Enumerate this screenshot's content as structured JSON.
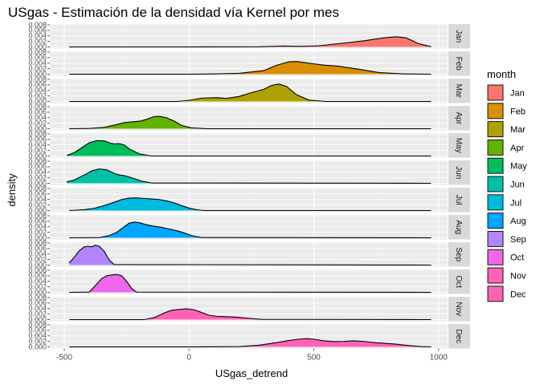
{
  "chart_data": {
    "type": "area",
    "title": "USgas - Estimación de la densidad vía Kernel por mes",
    "xlabel": "USgas_detrend",
    "ylabel": "density",
    "xlim": [
      -520,
      1000
    ],
    "ylim": [
      0,
      0.008
    ],
    "x_ticks": [
      -500,
      0,
      500,
      1000
    ],
    "x_tick_labels": [
      "-500",
      "0",
      "500",
      "1000"
    ],
    "y_ticks": [
      0,
      0.002,
      0.004,
      0.006,
      0.008
    ],
    "y_tick_labels": [
      "0.000",
      "0.002",
      "0.004",
      "0.006",
      "0.008"
    ],
    "legend_title": "month",
    "legend_position": "right",
    "grid": true,
    "panel_background": "#ebebeb",
    "strip_background": "#d9d9d9",
    "series": [
      {
        "name": "Jan",
        "color": "#F8766D",
        "x": [
          -480,
          0,
          280,
          380,
          450,
          520,
          600,
          700,
          780,
          830,
          870,
          920,
          970
        ],
        "y": [
          0,
          0,
          5e-05,
          0.0003,
          0.0002,
          0.0004,
          0.0012,
          0.0022,
          0.0033,
          0.0037,
          0.0033,
          0.0012,
          0.0001
        ]
      },
      {
        "name": "Feb",
        "color": "#DB8E00",
        "x": [
          -480,
          0,
          100,
          200,
          300,
          350,
          400,
          430,
          480,
          540,
          600,
          680,
          760,
          860,
          970
        ],
        "y": [
          0,
          0,
          0.0001,
          0.0003,
          0.0013,
          0.0032,
          0.0045,
          0.0046,
          0.004,
          0.0033,
          0.0029,
          0.0018,
          0.0006,
          0.0001,
          0
        ]
      },
      {
        "name": "Mar",
        "color": "#AEA200",
        "x": [
          -480,
          -50,
          0,
          50,
          110,
          150,
          200,
          250,
          300,
          330,
          360,
          390,
          430,
          480,
          550,
          970
        ],
        "y": [
          0,
          0,
          0.0004,
          0.0012,
          0.0014,
          0.0011,
          0.0018,
          0.0032,
          0.0044,
          0.0058,
          0.0063,
          0.0055,
          0.0025,
          0.0005,
          0,
          0
        ]
      },
      {
        "name": "Apr",
        "color": "#64B200",
        "x": [
          -480,
          -400,
          -340,
          -300,
          -260,
          -230,
          -200,
          -170,
          -140,
          -120,
          -90,
          -60,
          -30,
          10,
          70,
          970
        ],
        "y": [
          0,
          0.0001,
          0.0005,
          0.0013,
          0.0022,
          0.0025,
          0.0027,
          0.0034,
          0.0044,
          0.0045,
          0.004,
          0.0028,
          0.0012,
          0.0003,
          0,
          0
        ]
      },
      {
        "name": "May",
        "color": "#00BD5C",
        "x": [
          -490,
          -460,
          -430,
          -400,
          -370,
          -340,
          -320,
          -300,
          -280,
          -260,
          -240,
          -200,
          -150,
          970
        ],
        "y": [
          0.0002,
          0.0012,
          0.003,
          0.0048,
          0.0056,
          0.0055,
          0.0048,
          0.0044,
          0.0045,
          0.004,
          0.0026,
          0.0008,
          0,
          0
        ]
      },
      {
        "name": "Jun",
        "color": "#00C1A7",
        "x": [
          -490,
          -460,
          -420,
          -390,
          -360,
          -330,
          -300,
          -280,
          -260,
          -230,
          -190,
          -150,
          970
        ],
        "y": [
          0.0005,
          0.0012,
          0.003,
          0.0045,
          0.0052,
          0.0049,
          0.0036,
          0.003,
          0.0028,
          0.002,
          0.0008,
          0.0001,
          0
        ]
      },
      {
        "name": "Jul",
        "color": "#00BADE",
        "x": [
          -480,
          -420,
          -380,
          -340,
          -300,
          -270,
          -240,
          -210,
          -180,
          -150,
          -120,
          -90,
          -60,
          -30,
          0,
          30,
          60,
          970
        ],
        "y": [
          0,
          0.0003,
          0.0008,
          0.0018,
          0.003,
          0.004,
          0.0045,
          0.0046,
          0.0044,
          0.0042,
          0.004,
          0.0035,
          0.0028,
          0.0018,
          0.0009,
          0.0003,
          0,
          0
        ]
      },
      {
        "name": "Aug",
        "color": "#00A6FF",
        "x": [
          -480,
          -360,
          -320,
          -290,
          -260,
          -240,
          -220,
          -200,
          -170,
          -140,
          -110,
          -80,
          -50,
          -20,
          10,
          50,
          970
        ],
        "y": [
          0,
          0.0001,
          0.0008,
          0.002,
          0.004,
          0.0053,
          0.0057,
          0.0055,
          0.0047,
          0.0042,
          0.0038,
          0.0032,
          0.0026,
          0.0018,
          0.0008,
          0.0001,
          0
        ]
      },
      {
        "name": "Sep",
        "color": "#B385FF",
        "x": [
          -480,
          -460,
          -440,
          -420,
          -405,
          -390,
          -375,
          -360,
          -340,
          -320,
          -300,
          970
        ],
        "y": [
          0.0008,
          0.0028,
          0.0052,
          0.0066,
          0.0068,
          0.0066,
          0.0072,
          0.0068,
          0.005,
          0.0018,
          0.0002,
          0
        ]
      },
      {
        "name": "Oct",
        "color": "#EF67EB",
        "x": [
          -480,
          -400,
          -380,
          -350,
          -330,
          -310,
          -290,
          -270,
          -250,
          -230,
          -210,
          970
        ],
        "y": [
          0,
          0.0001,
          0.002,
          0.005,
          0.006,
          0.0063,
          0.0065,
          0.006,
          0.004,
          0.0014,
          0.0001,
          0
        ]
      },
      {
        "name": "Nov",
        "color": "#FF63B6",
        "x": [
          -480,
          -180,
          -140,
          -100,
          -70,
          -40,
          -10,
          20,
          50,
          80,
          110,
          140,
          190,
          250,
          290,
          970
        ],
        "y": [
          0,
          0,
          0.0007,
          0.0024,
          0.0034,
          0.0037,
          0.0039,
          0.0036,
          0.0026,
          0.0016,
          0.0012,
          0.0011,
          0.0009,
          0.0004,
          0.0001,
          0
        ]
      },
      {
        "name": "Dec",
        "color": "#FF63B6",
        "x": [
          -480,
          0,
          200,
          280,
          340,
          400,
          440,
          470,
          500,
          540,
          580,
          620,
          660,
          700,
          750,
          830,
          880,
          930,
          970
        ],
        "y": [
          0,
          0,
          0.0001,
          0.0006,
          0.0014,
          0.0023,
          0.0028,
          0.003,
          0.0028,
          0.0022,
          0.0019,
          0.002,
          0.0022,
          0.002,
          0.0015,
          0.001,
          0.0005,
          0.0001,
          0
        ]
      }
    ]
  }
}
